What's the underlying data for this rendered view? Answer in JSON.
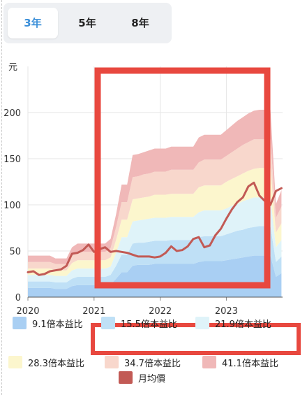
{
  "tabs": [
    {
      "label": "3年",
      "active": true
    },
    {
      "label": "5年",
      "active": false
    },
    {
      "label": "8年",
      "active": false
    }
  ],
  "chart_data": {
    "type": "area",
    "ylabel": "元",
    "ylim": [
      0,
      250
    ],
    "yticks": [
      0,
      50,
      100,
      150,
      200
    ],
    "xlim": [
      2020.0,
      2023.85
    ],
    "xticks": [
      {
        "value": 2020,
        "label": "2020"
      },
      {
        "value": 2021,
        "label": "2021"
      },
      {
        "value": 2022,
        "label": "2022"
      },
      {
        "value": 2023,
        "label": "2023"
      }
    ],
    "grid": true,
    "x": [
      2020.0,
      2020.0833,
      2020.1667,
      2020.25,
      2020.3333,
      2020.4167,
      2020.5,
      2020.5833,
      2020.6667,
      2020.75,
      2020.8333,
      2020.9167,
      2021.0,
      2021.0833,
      2021.1667,
      2021.25,
      2021.3333,
      2021.4167,
      2021.5,
      2021.5833,
      2021.6667,
      2021.75,
      2021.8333,
      2021.9167,
      2022.0,
      2022.0833,
      2022.1667,
      2022.25,
      2022.3333,
      2022.4167,
      2022.5,
      2022.5833,
      2022.6667,
      2022.75,
      2022.8333,
      2022.9167,
      2023.0,
      2023.0833,
      2023.1667,
      2023.25,
      2023.3333,
      2023.4167,
      2023.5,
      2023.5833,
      2023.6667,
      2023.75,
      2023.8333
    ],
    "bands": [
      {
        "name": "9.1倍本益比",
        "color": "#a9cff3",
        "values": [
          10,
          10,
          10,
          10,
          10,
          9,
          9,
          9,
          12,
          13,
          13,
          13,
          13,
          13,
          13,
          14,
          20,
          27,
          27,
          34,
          35,
          35,
          35,
          36,
          36,
          36,
          36,
          36,
          36,
          36,
          36,
          38,
          39,
          39,
          39,
          39,
          40,
          41,
          42,
          43,
          44,
          45,
          45,
          45,
          45,
          22,
          26
        ]
      },
      {
        "name": "15.5倍本益比",
        "color": "#bfe0f6",
        "values": [
          17,
          17,
          17,
          17,
          17,
          16,
          16,
          16,
          20,
          22,
          22,
          22,
          22,
          22,
          22,
          24,
          34,
          46,
          46,
          58,
          59,
          59,
          60,
          61,
          61,
          61,
          62,
          62,
          62,
          62,
          62,
          65,
          66,
          66,
          66,
          66,
          68,
          70,
          72,
          73,
          75,
          76,
          77,
          77,
          77,
          38,
          44
        ]
      },
      {
        "name": "21.9倍本益比",
        "color": "#dff3f9",
        "values": [
          24,
          24,
          24,
          24,
          24,
          23,
          23,
          23,
          29,
          31,
          31,
          31,
          31,
          31,
          31,
          33,
          48,
          65,
          65,
          82,
          83,
          84,
          85,
          86,
          86,
          86,
          87,
          87,
          87,
          87,
          87,
          92,
          94,
          94,
          94,
          94,
          96,
          99,
          101,
          104,
          106,
          108,
          108,
          108,
          108,
          54,
          62
        ]
      },
      {
        "name": "28.3倍本益比",
        "color": "#fcf6cd",
        "values": [
          31,
          31,
          31,
          31,
          31,
          29,
          29,
          29,
          37,
          40,
          40,
          40,
          40,
          40,
          40,
          43,
          62,
          84,
          84,
          106,
          107,
          108,
          109,
          111,
          111,
          111,
          112,
          112,
          112,
          112,
          112,
          119,
          121,
          121,
          121,
          121,
          125,
          128,
          131,
          134,
          137,
          139,
          140,
          140,
          140,
          70,
          80
        ]
      },
      {
        "name": "34.7倍本益比",
        "color": "#f8d7cc",
        "values": [
          38,
          38,
          38,
          38,
          38,
          36,
          36,
          36,
          46,
          49,
          49,
          49,
          49,
          49,
          49,
          53,
          76,
          103,
          103,
          130,
          131,
          133,
          134,
          136,
          136,
          136,
          138,
          138,
          138,
          138,
          138,
          146,
          149,
          149,
          149,
          149,
          153,
          157,
          161,
          165,
          168,
          171,
          171,
          171,
          171,
          86,
          98
        ]
      },
      {
        "name": "41.1倍本益比",
        "color": "#f0b8b8",
        "values": [
          45,
          45,
          45,
          45,
          45,
          42,
          42,
          42,
          54,
          58,
          58,
          58,
          58,
          58,
          58,
          63,
          90,
          122,
          122,
          154,
          155,
          157,
          159,
          161,
          161,
          161,
          163,
          163,
          163,
          163,
          163,
          173,
          176,
          176,
          176,
          176,
          181,
          186,
          191,
          195,
          199,
          202,
          203,
          203,
          203,
          101,
          116
        ]
      }
    ],
    "series": [
      {
        "name": "月均價",
        "color": "#c25a55",
        "values": [
          27,
          28,
          24,
          25,
          28,
          29,
          30,
          34,
          47,
          48,
          51,
          57,
          49,
          52,
          54,
          49,
          50,
          49,
          48,
          46,
          44,
          44,
          44,
          43,
          44,
          48,
          55,
          50,
          51,
          55,
          63,
          65,
          54,
          56,
          67,
          74,
          85,
          95,
          103,
          108,
          120,
          124,
          110,
          104,
          100,
          115,
          118
        ]
      }
    ],
    "legend_position": "bottom"
  },
  "legend": [
    {
      "label": "9.1倍本益比",
      "color": "#a9cff3"
    },
    {
      "label": "15.5倍本益比",
      "color": "#bfe0f6"
    },
    {
      "label": "21.9倍本益比",
      "color": "#dff3f9"
    },
    {
      "label": "28.3倍本益比",
      "color": "#fcf6cd"
    },
    {
      "label": "34.7倍本益比",
      "color": "#f8d7cc"
    },
    {
      "label": "41.1倍本益比",
      "color": "#f0b8b8"
    },
    {
      "label": "月均價",
      "color": "#c25a55"
    }
  ],
  "highlight_color": "#e8483f"
}
